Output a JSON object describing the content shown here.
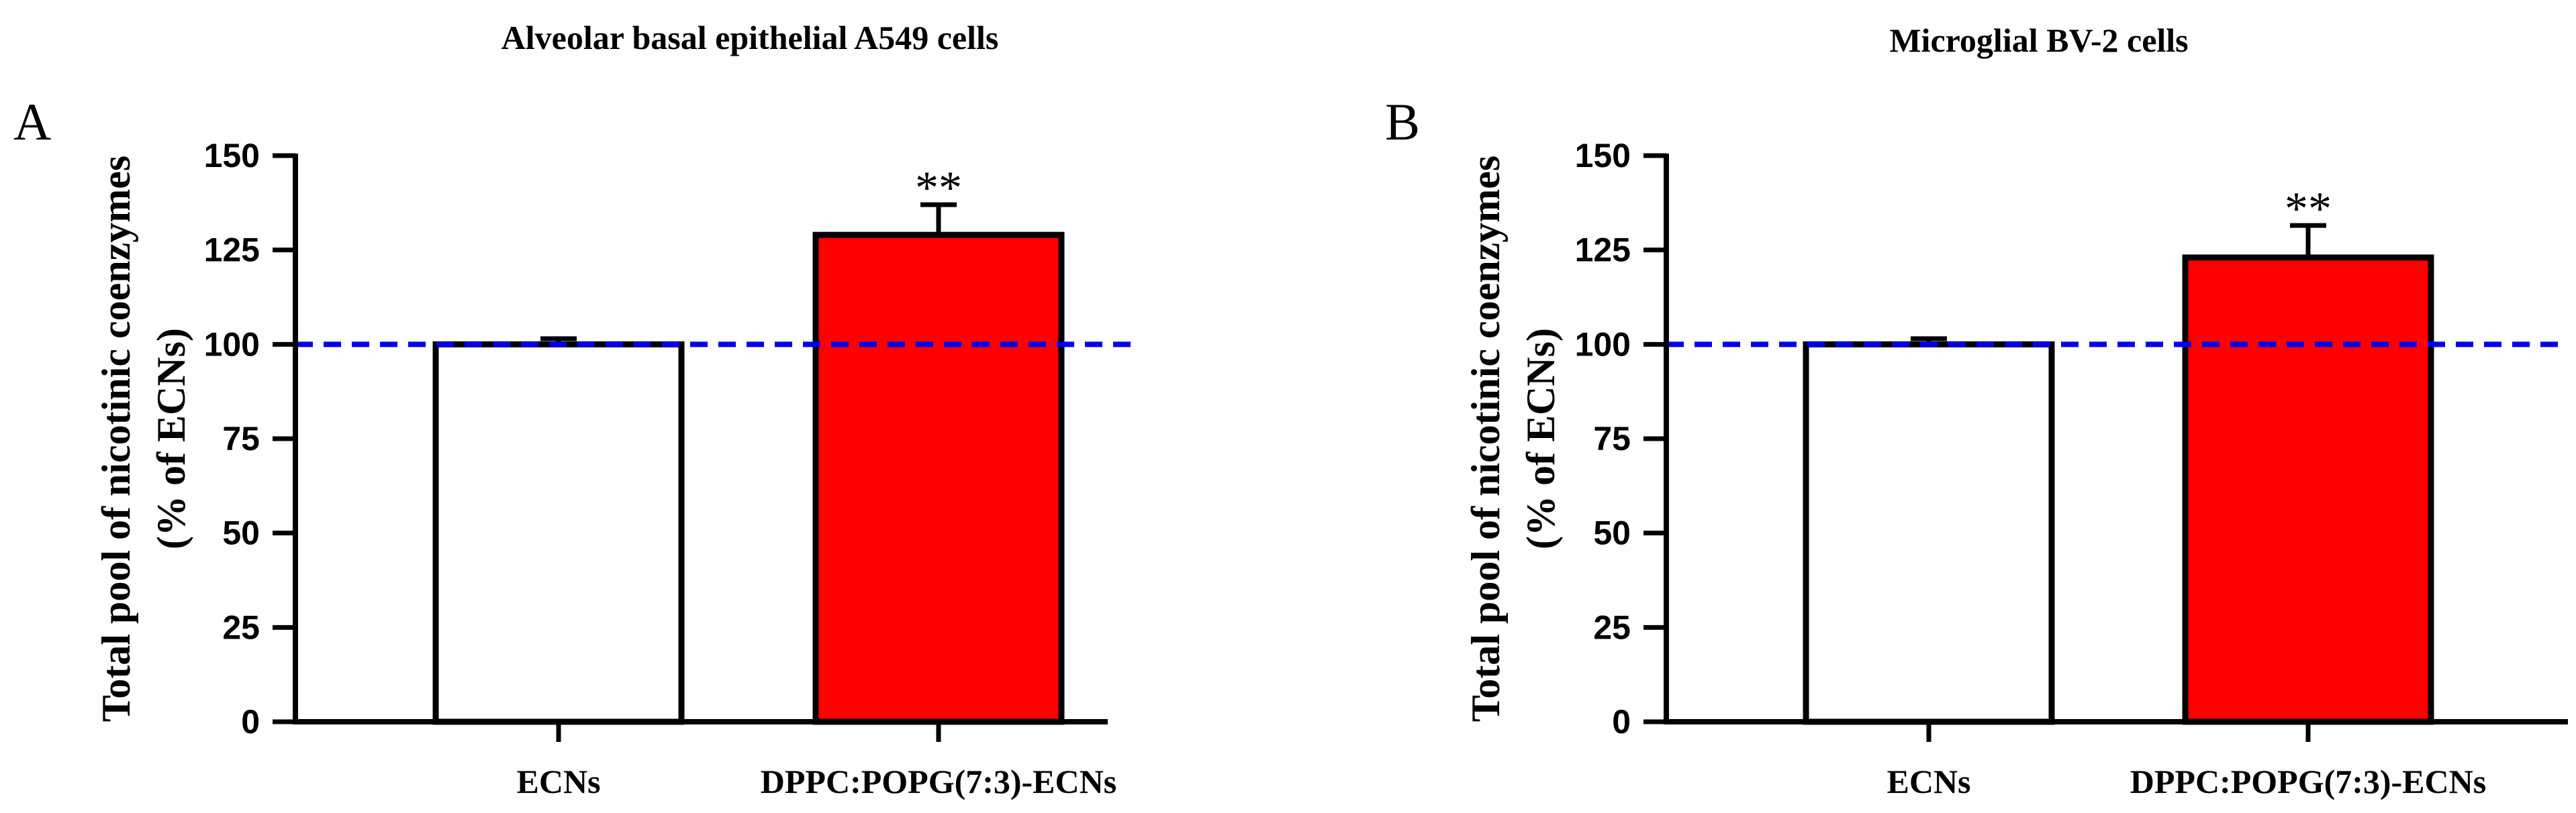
{
  "chart_data": [
    {
      "type": "bar",
      "panel": "A",
      "title": "Alveolar basal epithelial A549 cells",
      "ylabel_line1": "Total pool of nicotinic coenzymes",
      "ylabel_line2": "(% of ECNs)",
      "xlabel": "",
      "categories": [
        "ECNs",
        "DPPC:POPG(7:3)-ECNs"
      ],
      "values": [
        100,
        129
      ],
      "errors": [
        1.5,
        8
      ],
      "colors": [
        "#ffffff",
        "#ff0000"
      ],
      "ylim": [
        0,
        150
      ],
      "yticks": [
        0,
        25,
        50,
        75,
        100,
        125,
        150
      ],
      "reference_line": {
        "y": 100,
        "color": "#0000ee",
        "style": "dashed"
      },
      "annotations": [
        {
          "category": "DPPC:POPG(7:3)-ECNs",
          "text": "**"
        }
      ]
    },
    {
      "type": "bar",
      "panel": "B",
      "title": "Microglial BV-2 cells",
      "ylabel_line1": "Total pool of nicotinic coenzymes",
      "ylabel_line2": "(% of ECNs)",
      "xlabel": "",
      "categories": [
        "ECNs",
        "DPPC:POPG(7:3)-ECNs"
      ],
      "values": [
        100,
        123
      ],
      "errors": [
        1.5,
        8.5
      ],
      "colors": [
        "#ffffff",
        "#ff0000"
      ],
      "ylim": [
        0,
        150
      ],
      "yticks": [
        0,
        25,
        50,
        75,
        100,
        125,
        150
      ],
      "reference_line": {
        "y": 100,
        "color": "#0000ee",
        "style": "dashed"
      },
      "annotations": [
        {
          "category": "DPPC:POPG(7:3)-ECNs",
          "text": "**"
        }
      ]
    }
  ]
}
